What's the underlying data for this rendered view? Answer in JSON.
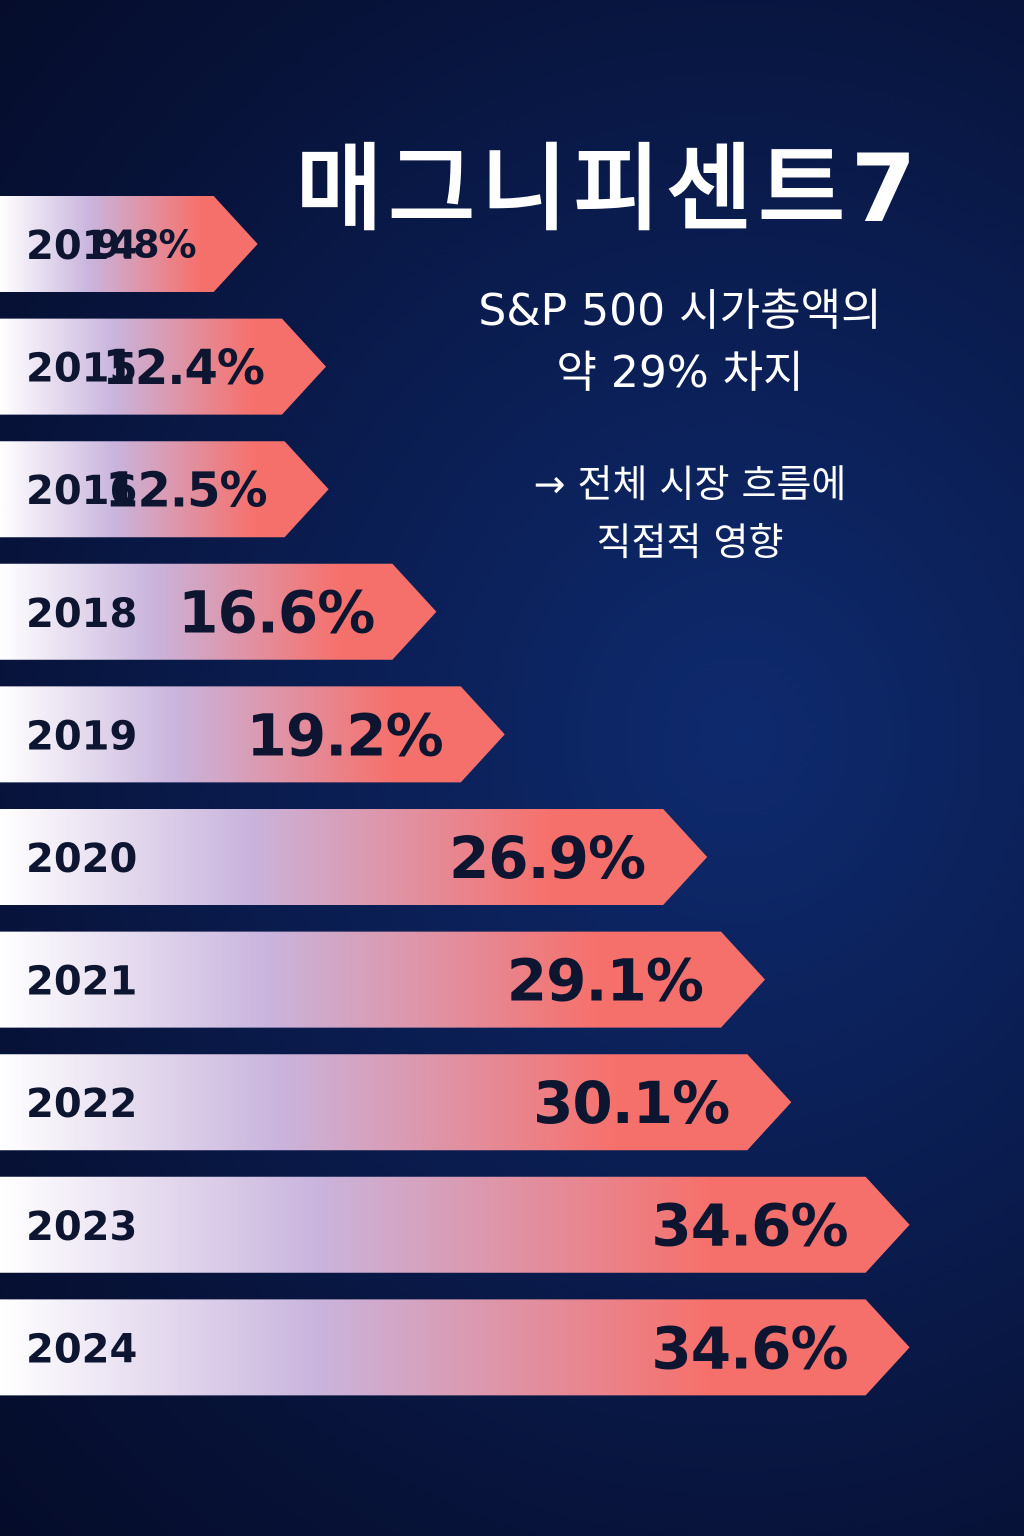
{
  "header": {
    "title": "매그니피센트7",
    "subtitle_line1": "S&P 500 시가총액의",
    "subtitle_line2": "약 29% 차지",
    "note_line1": "→ 전체 시장 흐름에",
    "note_line2": "직접적 영향"
  },
  "colors": {
    "bar_start": "#ffffff",
    "bar_mid": "#c9b4dd",
    "bar_end": "#f6706b",
    "text_dark": "#0d1530"
  },
  "chart_data": {
    "type": "bar",
    "orientation": "horizontal",
    "title": "매그니피센트7",
    "unit": "%",
    "categories": [
      "2014",
      "2015",
      "2016",
      "2018",
      "2019",
      "2020",
      "2021",
      "2022",
      "2023",
      "2024"
    ],
    "values": [
      9.8,
      12.4,
      12.5,
      16.6,
      19.2,
      26.9,
      29.1,
      30.1,
      34.6,
      34.6
    ],
    "value_labels": [
      "9.8%",
      "12.4%",
      "12.5%",
      "16.6%",
      "19.2%",
      "26.9%",
      "29.1%",
      "30.1%",
      "34.6%",
      "34.6%"
    ],
    "xlim": [
      0,
      36
    ],
    "grid": false,
    "legend": "none"
  }
}
